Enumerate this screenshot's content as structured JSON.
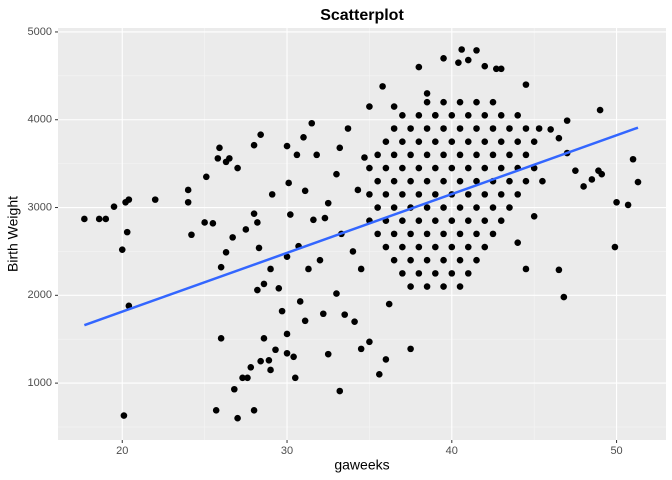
{
  "chart_data": {
    "type": "scatter",
    "title": "Scatterplot",
    "x_label": "gaweeks",
    "y_label": "Birth Weight",
    "xlim": [
      16.1,
      53.0
    ],
    "ylim": [
      352,
      5045
    ],
    "xticks": [
      20,
      30,
      40,
      50
    ],
    "yticks": [
      1000,
      2000,
      3000,
      4000,
      5000
    ],
    "grid": true,
    "color": "#000000",
    "x": [
      17.7,
      18.6,
      19,
      19.5,
      20,
      20.1,
      20.2,
      20.3,
      20.4,
      20.4,
      22,
      24,
      24,
      24.2,
      25,
      25.1,
      25.5,
      25.8,
      25.9,
      26,
      26,
      25.7,
      26.3,
      26.5,
      26.3,
      26.7,
      26.8,
      27,
      27,
      27.3,
      27.6,
      27.5,
      27.8,
      28,
      28,
      28,
      28.2,
      28.3,
      28.4,
      28.2,
      28.4,
      28.6,
      28.6,
      29,
      29.1,
      29,
      28.9,
      29.3,
      29.5,
      29.7,
      30,
      30.1,
      30.2,
      30,
      30,
      30,
      30.4,
      30.5,
      30.6,
      30.7,
      30.8,
      31.1,
      31,
      31.1,
      31.3,
      31.5,
      31.6,
      31.8,
      32,
      32.2,
      32.5,
      32.5,
      32.3,
      33,
      33,
      33.2,
      33.3,
      33.2,
      33.5,
      33.7,
      34,
      34.1,
      34.3,
      34.5,
      34.5,
      34.7,
      35,
      35,
      35.6,
      35.8,
      36.2,
      36.5,
      36,
      37.5,
      38,
      38.5,
      39,
      39.5,
      40.4,
      40.6,
      41.5,
      41,
      42,
      42.7,
      43,
      44.5,
      45.3,
      46,
      46.5,
      47,
      47,
      46.5,
      46.8,
      47.5,
      48,
      48.5,
      48.9,
      49,
      49.1,
      49.9,
      50,
      50.7,
      51,
      51.3,
      45,
      44.5,
      44,
      38.5,
      39.5,
      40.5,
      41.5,
      42.5,
      37,
      38,
      39,
      40,
      41,
      42,
      43,
      44,
      36.5,
      37.5,
      38.5,
      39.5,
      40.5,
      41.5,
      42.5,
      43.5,
      44.5,
      36,
      37,
      38,
      39,
      40,
      41,
      42,
      43,
      44,
      45,
      35.5,
      36.5,
      37.5,
      38.5,
      39.5,
      40.5,
      41.5,
      42.5,
      43.5,
      44.5,
      35,
      36,
      37,
      38,
      39,
      40,
      41,
      42,
      43,
      44,
      45,
      35.5,
      36.5,
      37.5,
      38.5,
      39.5,
      40.5,
      41.5,
      42.5,
      43.5,
      44.5,
      45.5,
      35,
      36,
      37,
      38,
      39,
      40,
      41,
      42,
      43,
      44,
      35.5,
      36.5,
      37.5,
      38.5,
      39.5,
      40.5,
      41.5,
      42.5,
      43.5,
      35,
      36,
      37,
      38,
      39,
      40,
      41,
      42,
      43,
      35.5,
      36.5,
      37.5,
      38.5,
      39.5,
      40.5,
      41.5,
      42.5,
      36,
      37,
      38,
      39,
      40,
      41,
      42,
      36.5,
      37.5,
      38.5,
      39.5,
      40.5,
      41.5,
      37,
      38,
      39,
      40,
      41,
      37.5,
      38.5,
      39.5,
      40.5
    ],
    "values": [
      2870,
      2870,
      2870,
      3010,
      2520,
      630,
      3060,
      2720,
      3090,
      1880,
      3090,
      3200,
      3060,
      2690,
      2830,
      3350,
      2820,
      3560,
      3680,
      2320,
      1510,
      690,
      3520,
      3560,
      2490,
      2660,
      930,
      3450,
      600,
      1060,
      1060,
      2750,
      1180,
      3710,
      690,
      2930,
      2830,
      2540,
      3830,
      2060,
      1250,
      2130,
      1510,
      1150,
      3150,
      2300,
      1260,
      1380,
      2080,
      1820,
      3700,
      3280,
      2920,
      2440,
      1560,
      1340,
      1300,
      1060,
      3600,
      2560,
      1930,
      3190,
      3800,
      1710,
      2300,
      3960,
      2860,
      3600,
      2400,
      1790,
      3050,
      1330,
      2880,
      3380,
      2020,
      3680,
      2700,
      910,
      1780,
      3900,
      2500,
      1700,
      3200,
      2300,
      1390,
      3570,
      4150,
      1470,
      1100,
      4380,
      1900,
      4150,
      1270,
      1390,
      4600,
      4300,
      4050,
      4700,
      4650,
      4800,
      4790,
      4680,
      4610,
      4580,
      4580,
      4400,
      3900,
      3890,
      3790,
      3990,
      3620,
      2290,
      1980,
      3420,
      3240,
      3320,
      3420,
      4110,
      3380,
      2550,
      3060,
      3030,
      3550,
      3290,
      2900,
      2300,
      2600,
      4200,
      4200,
      4200,
      4200,
      4200,
      4050,
      4050,
      4050,
      4050,
      4050,
      4050,
      4050,
      4050,
      3900,
      3900,
      3900,
      3900,
      3900,
      3900,
      3900,
      3900,
      3900,
      3750,
      3750,
      3750,
      3750,
      3750,
      3750,
      3750,
      3750,
      3750,
      3750,
      3600,
      3600,
      3600,
      3600,
      3600,
      3600,
      3600,
      3600,
      3600,
      3600,
      3450,
      3450,
      3450,
      3450,
      3450,
      3450,
      3450,
      3450,
      3450,
      3450,
      3450,
      3300,
      3300,
      3300,
      3300,
      3300,
      3300,
      3300,
      3300,
      3300,
      3300,
      3300,
      3150,
      3150,
      3150,
      3150,
      3150,
      3150,
      3150,
      3150,
      3150,
      3150,
      3000,
      3000,
      3000,
      3000,
      3000,
      3000,
      3000,
      3000,
      3000,
      2850,
      2850,
      2850,
      2850,
      2850,
      2850,
      2850,
      2850,
      2850,
      2700,
      2700,
      2700,
      2700,
      2700,
      2700,
      2700,
      2700,
      2550,
      2550,
      2550,
      2550,
      2550,
      2550,
      2550,
      2400,
      2400,
      2400,
      2400,
      2400,
      2400,
      2250,
      2250,
      2250,
      2250,
      2250,
      2100,
      2100,
      2100,
      2100
    ],
    "trend_line": {
      "x": [
        17.7,
        51.3
      ],
      "values": [
        1660,
        3910
      ],
      "color": "#3366FF"
    }
  }
}
